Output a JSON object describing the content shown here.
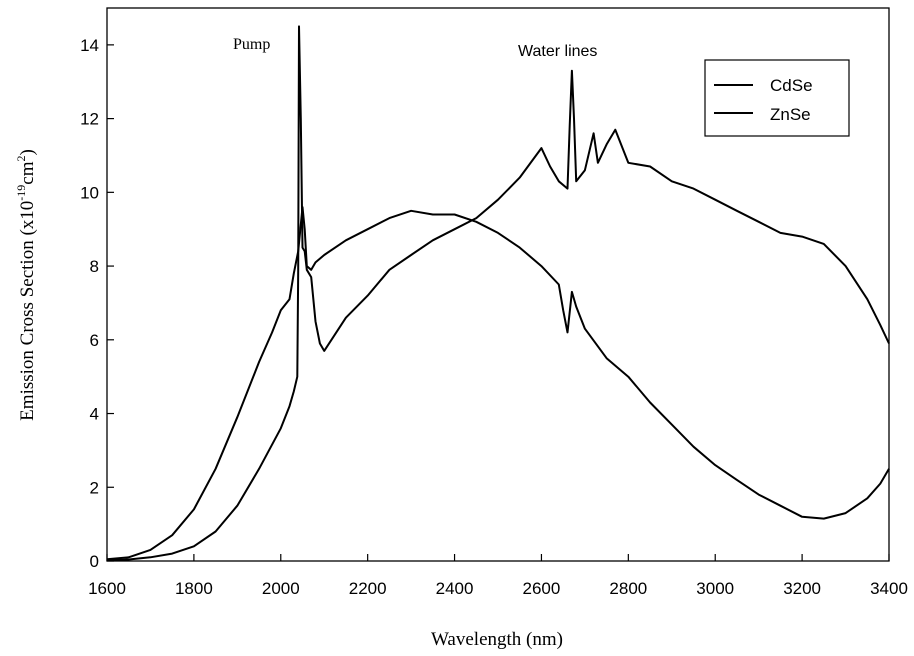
{
  "chart_data": {
    "type": "line",
    "xlabel": "Wavelength (nm)",
    "ylabel": {
      "main": "Emission Cross Section (x10",
      "exp1": "-19",
      "mid": "cm",
      "exp2": "2",
      "end": ")"
    },
    "xlim": [
      1600,
      3400
    ],
    "ylim": [
      0,
      15
    ],
    "xticks": [
      1600,
      1800,
      2000,
      2200,
      2400,
      2600,
      2800,
      3000,
      3200,
      3400
    ],
    "yticks": [
      0,
      2,
      4,
      6,
      8,
      10,
      12,
      14
    ],
    "grid": false,
    "legend": {
      "position": "top-right",
      "entries": [
        "CdSe",
        "ZnSe"
      ]
    },
    "annotations": [
      {
        "text": "Pump",
        "x": 2030,
        "y": 14.5
      },
      {
        "text": "Water lines",
        "x": 2670,
        "y": 13.8
      }
    ],
    "series": [
      {
        "name": "CdSe",
        "x": [
          1600,
          1650,
          1700,
          1750,
          1800,
          1850,
          1900,
          1950,
          2000,
          2020,
          2030,
          2038,
          2040,
          2042,
          2046,
          2050,
          2055,
          2060,
          2070,
          2080,
          2090,
          2100,
          2150,
          2200,
          2250,
          2300,
          2350,
          2400,
          2450,
          2500,
          2550,
          2600,
          2620,
          2640,
          2660,
          2665,
          2670,
          2675,
          2680,
          2700,
          2720,
          2730,
          2750,
          2770,
          2800,
          2850,
          2900,
          2950,
          3000,
          3050,
          3100,
          3150,
          3200,
          3250,
          3300,
          3350,
          3380,
          3400
        ],
        "values": [
          0.02,
          0.04,
          0.1,
          0.2,
          0.4,
          0.8,
          1.5,
          2.5,
          3.6,
          4.2,
          4.6,
          5.0,
          7.9,
          14.5,
          12.0,
          8.5,
          8.4,
          7.9,
          7.7,
          6.5,
          5.9,
          5.7,
          6.6,
          7.2,
          7.9,
          8.3,
          8.7,
          9.0,
          9.3,
          9.8,
          10.4,
          11.2,
          10.7,
          10.3,
          10.1,
          11.8,
          13.3,
          12.0,
          10.3,
          10.6,
          11.6,
          10.8,
          11.3,
          11.7,
          10.8,
          10.7,
          10.3,
          10.1,
          9.8,
          9.5,
          9.2,
          8.9,
          8.8,
          8.6,
          8.0,
          7.1,
          6.4,
          5.9
        ]
      },
      {
        "name": "ZnSe",
        "x": [
          1600,
          1650,
          1700,
          1750,
          1800,
          1850,
          1900,
          1950,
          1980,
          2000,
          2020,
          2030,
          2040,
          2050,
          2055,
          2060,
          2070,
          2080,
          2100,
          2150,
          2200,
          2250,
          2300,
          2350,
          2400,
          2450,
          2500,
          2550,
          2600,
          2640,
          2650,
          2660,
          2670,
          2680,
          2700,
          2750,
          2800,
          2850,
          2900,
          2950,
          3000,
          3050,
          3100,
          3150,
          3200,
          3250,
          3300,
          3350,
          3380,
          3400
        ],
        "values": [
          0.05,
          0.1,
          0.3,
          0.7,
          1.4,
          2.5,
          3.9,
          5.4,
          6.2,
          6.8,
          7.1,
          7.8,
          8.4,
          9.6,
          9.0,
          8.0,
          7.9,
          8.1,
          8.3,
          8.7,
          9.0,
          9.3,
          9.5,
          9.4,
          9.4,
          9.2,
          8.9,
          8.5,
          8.0,
          7.5,
          6.8,
          6.2,
          7.3,
          6.9,
          6.3,
          5.5,
          5.0,
          4.3,
          3.7,
          3.1,
          2.6,
          2.2,
          1.8,
          1.5,
          1.2,
          1.15,
          1.3,
          1.7,
          2.1,
          2.5
        ]
      }
    ]
  }
}
